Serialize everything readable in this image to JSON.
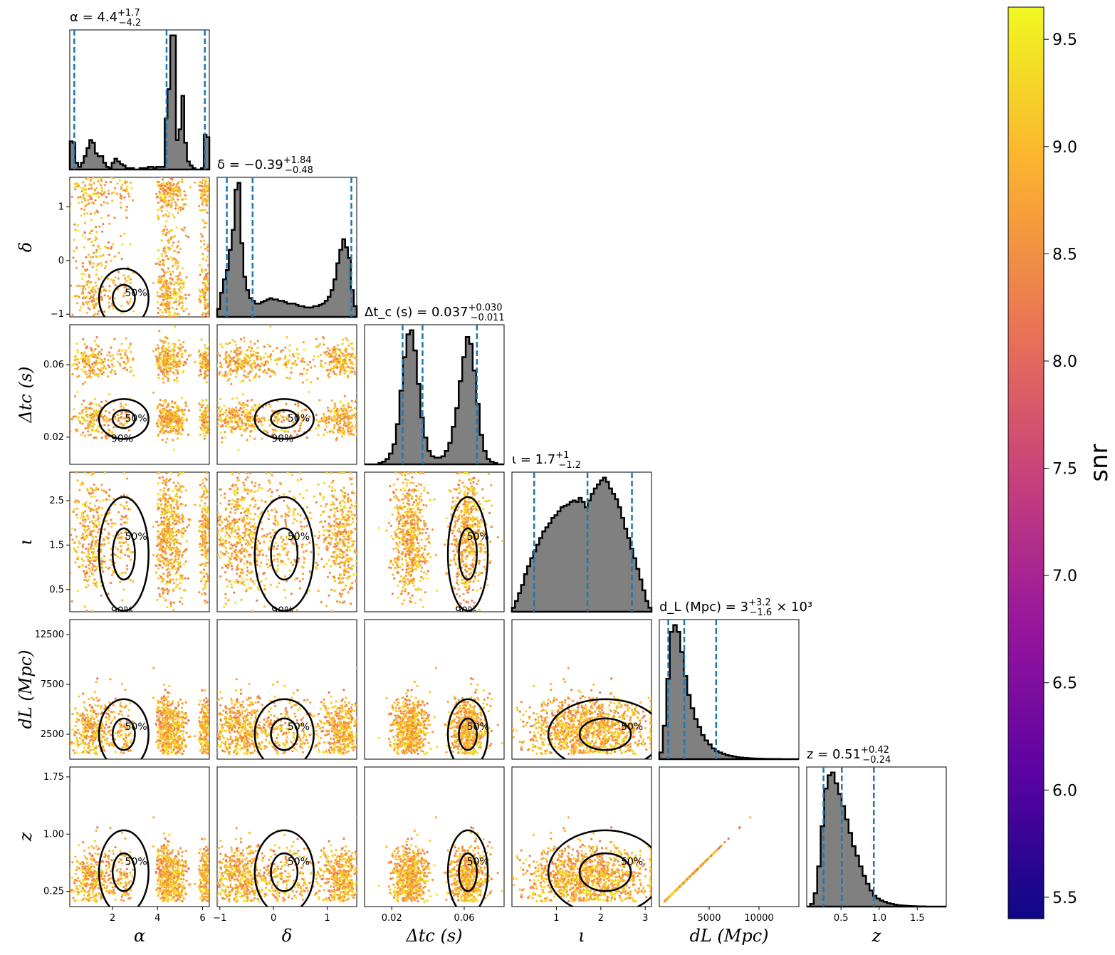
{
  "chart_data": {
    "type": "scatter",
    "subtype": "corner-plot",
    "colorbar": {
      "label": "snr",
      "range": [
        5.4,
        9.65
      ],
      "ticks": [
        "5.5",
        "6.0",
        "6.5",
        "7.0",
        "7.5",
        "8.0",
        "8.5",
        "9.0",
        "9.5"
      ],
      "colormap": [
        "#0d0887",
        "#5b02a3",
        "#9a179b",
        "#cb4678",
        "#eb7852",
        "#fbb32f",
        "#eff821"
      ]
    },
    "contour_levels": [
      "50%",
      "90%"
    ],
    "parameters": [
      {
        "key": "alpha",
        "label": "α",
        "range": [
          0.1,
          6.3
        ],
        "ticks": [
          {
            "v": 2,
            "t": "2"
          },
          {
            "v": 4,
            "t": "4"
          },
          {
            "v": 6,
            "t": "6"
          }
        ],
        "title": "α = 4.4",
        "title_sup": "+1.7",
        "title_sub": "−4.2",
        "quantiles": [
          0.3,
          4.4,
          6.1
        ]
      },
      {
        "key": "delta",
        "label": "δ",
        "range": [
          -1.05,
          1.55
        ],
        "ticks": [
          {
            "v": -1,
            "t": "−1"
          },
          {
            "v": 0,
            "t": "0"
          },
          {
            "v": 1,
            "t": "1"
          }
        ],
        "title": "δ = −0.39",
        "title_sup": "+1.84",
        "title_sub": "−0.48",
        "quantiles": [
          -0.87,
          -0.39,
          1.45
        ]
      },
      {
        "key": "dtc",
        "label": "Δt_c (s)",
        "range": [
          0.005,
          0.082
        ],
        "ticks": [
          {
            "v": 0.02,
            "t": "0.02"
          },
          {
            "v": 0.06,
            "t": "0.06"
          }
        ],
        "title": "Δt_c (s) = 0.037",
        "title_sup": "+0.030",
        "title_sub": "−0.011",
        "quantiles": [
          0.026,
          0.037,
          0.067
        ]
      },
      {
        "key": "iota",
        "label": "ι",
        "range": [
          0,
          3.14
        ],
        "ticks": [
          {
            "v": 1,
            "t": "1"
          },
          {
            "v": 2,
            "t": "2"
          },
          {
            "v": 3,
            "t": "3"
          }
        ],
        "title": "ι = 1.7",
        "title_sup": "+1",
        "title_sub": "−1.2",
        "quantiles": [
          0.5,
          1.7,
          2.7
        ]
      },
      {
        "key": "dl",
        "label": "d_L (Mpc)",
        "range": [
          0,
          14000
        ],
        "ticks": [
          {
            "v": 5000,
            "t": "5000"
          },
          {
            "v": 10000,
            "t": "10000"
          }
        ],
        "title": "d_L (Mpc) = 3",
        "title_sup": "+3.2",
        "title_sub": "−1.6",
        "title_tail": "× 10³",
        "quantiles": [
          900,
          2500,
          5700
        ]
      },
      {
        "key": "z",
        "label": "z",
        "range": [
          0.05,
          1.88
        ],
        "ticks": [
          {
            "v": 0.5,
            "t": "0.5"
          },
          {
            "v": 1.0,
            "t": "1.0"
          },
          {
            "v": 1.5,
            "t": "1.5"
          }
        ],
        "title": "z = 0.51",
        "title_sup": "+0.42",
        "title_sub": "−0.24",
        "quantiles": [
          0.27,
          0.51,
          0.93
        ]
      }
    ],
    "row_ticks": {
      "delta": [
        {
          "v": -1,
          "t": "−1"
        },
        {
          "v": 0,
          "t": "0"
        },
        {
          "v": 1,
          "t": "1"
        }
      ],
      "dtc": [
        {
          "v": 0.02,
          "t": "0.02"
        },
        {
          "v": 0.06,
          "t": "0.06"
        }
      ],
      "iota": [
        {
          "v": 0.5,
          "t": "0.5"
        },
        {
          "v": 1.5,
          "t": "1.5"
        },
        {
          "v": 2.5,
          "t": "2.5"
        }
      ],
      "dl": [
        {
          "v": 2500,
          "t": "2500"
        },
        {
          "v": 7500,
          "t": "7500"
        },
        {
          "v": 12500,
          "t": "12500"
        }
      ],
      "z": [
        {
          "v": 0.25,
          "t": "0.25"
        },
        {
          "v": 1.0,
          "t": "1.00"
        },
        {
          "v": 1.75,
          "t": "1.75"
        }
      ]
    },
    "histograms": {
      "alpha": [
        0.21,
        0.2,
        0.05,
        0.02,
        0.05,
        0.1,
        0.16,
        0.22,
        0.2,
        0.12,
        0.1,
        0.1,
        0.05,
        0.02,
        0.01,
        0.05,
        0.08,
        0.06,
        0.04,
        0.03,
        0.01,
        0.01,
        0.01,
        0.0,
        0.0,
        0.01,
        0.01,
        0.01,
        0.02,
        0.02,
        0.01,
        0.02,
        0.02,
        0.02,
        0.38,
        0.6,
        1.0,
        1.0,
        0.22,
        0.3,
        0.55,
        0.2,
        0.06,
        0.03,
        0.01,
        0.0,
        0.0,
        0.01,
        0.26,
        0.24
      ],
      "delta": [
        0.06,
        0.18,
        0.28,
        0.35,
        0.5,
        0.65,
        0.95,
        1.0,
        0.55,
        0.3,
        0.2,
        0.14,
        0.12,
        0.1,
        0.1,
        0.11,
        0.12,
        0.13,
        0.14,
        0.13,
        0.13,
        0.12,
        0.12,
        0.11,
        0.1,
        0.1,
        0.1,
        0.09,
        0.08,
        0.08,
        0.07,
        0.07,
        0.07,
        0.08,
        0.08,
        0.09,
        0.1,
        0.12,
        0.15,
        0.2,
        0.28,
        0.4,
        0.5,
        0.58,
        0.52,
        0.44,
        0.2,
        0.08
      ],
      "dtc": [
        0.0,
        0.0,
        0.0,
        0.0,
        0.01,
        0.02,
        0.04,
        0.08,
        0.15,
        0.3,
        0.55,
        0.8,
        0.97,
        1.0,
        0.85,
        0.6,
        0.35,
        0.2,
        0.1,
        0.06,
        0.05,
        0.05,
        0.06,
        0.1,
        0.16,
        0.28,
        0.42,
        0.62,
        0.8,
        0.95,
        0.9,
        0.7,
        0.45,
        0.22,
        0.1,
        0.04,
        0.02,
        0.01,
        0.0,
        0.0
      ],
      "iota": [
        0.03,
        0.08,
        0.14,
        0.2,
        0.28,
        0.34,
        0.4,
        0.45,
        0.5,
        0.55,
        0.6,
        0.63,
        0.66,
        0.7,
        0.72,
        0.75,
        0.78,
        0.79,
        0.8,
        0.82,
        0.83,
        0.82,
        0.85,
        0.82,
        0.78,
        0.83,
        0.88,
        0.92,
        0.95,
        0.98,
        1.0,
        0.97,
        0.92,
        0.88,
        0.84,
        0.78,
        0.7,
        0.62,
        0.55,
        0.47,
        0.4,
        0.32,
        0.24,
        0.16,
        0.08,
        0.03
      ],
      "dl": [
        0.05,
        0.25,
        0.6,
        0.95,
        1.0,
        0.95,
        0.8,
        0.62,
        0.48,
        0.38,
        0.3,
        0.24,
        0.18,
        0.14,
        0.11,
        0.08,
        0.06,
        0.05,
        0.04,
        0.03,
        0.025,
        0.02,
        0.015,
        0.012,
        0.01,
        0.008,
        0.006,
        0.005,
        0.004,
        0.003,
        0.002,
        0.002,
        0.001,
        0.001,
        0.001,
        0.0,
        0.0,
        0.0,
        0.0,
        0.0
      ],
      "z": [
        0.0,
        0.02,
        0.1,
        0.3,
        0.6,
        0.88,
        0.98,
        1.0,
        0.92,
        0.84,
        0.75,
        0.65,
        0.55,
        0.45,
        0.38,
        0.3,
        0.23,
        0.17,
        0.12,
        0.08,
        0.06,
        0.045,
        0.035,
        0.025,
        0.02,
        0.014,
        0.01,
        0.008,
        0.006,
        0.004,
        0.003,
        0.002,
        0.001,
        0.001,
        0.0,
        0.0,
        0.0,
        0.0,
        0.0,
        0.0
      ]
    },
    "modes": {
      "alpha": [
        {
          "m": 1.1,
          "s": 0.5,
          "w": 0.3
        },
        {
          "m": 2.5,
          "s": 0.2,
          "w": 0.08
        },
        {
          "m": 4.35,
          "s": 0.2,
          "w": 0.3
        },
        {
          "m": 4.9,
          "s": 0.2,
          "w": 0.18
        },
        {
          "m": 6.1,
          "s": 0.12,
          "w": 0.14
        }
      ],
      "delta": [
        {
          "m": -0.7,
          "s": 0.25,
          "w": 0.35
        },
        {
          "m": 0.2,
          "s": 0.5,
          "w": 0.3
        },
        {
          "m": 1.3,
          "s": 0.2,
          "w": 0.35
        }
      ],
      "dtc": [
        {
          "m": 0.03,
          "s": 0.005,
          "w": 0.5
        },
        {
          "m": 0.062,
          "s": 0.005,
          "w": 0.5
        }
      ],
      "iota": [
        {
          "m": 1.3,
          "s": 0.6,
          "w": 0.5
        },
        {
          "m": 2.1,
          "s": 0.55,
          "w": 0.5
        }
      ],
      "dl": [
        {
          "m": 2500,
          "s": 1600,
          "w": 1.0
        }
      ],
      "z": [
        {
          "m": 0.5,
          "s": 0.25,
          "w": 1.0
        }
      ]
    }
  }
}
